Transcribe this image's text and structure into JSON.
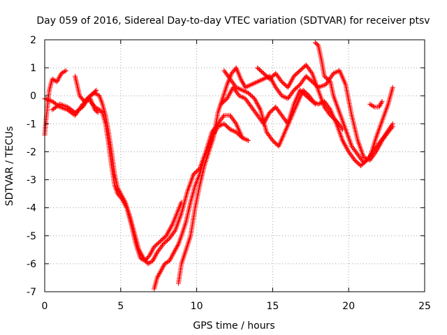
{
  "chart_data": {
    "type": "scatter",
    "title": "Day 059 of 2016, Sidereal Day-to-day VTEC variation (SDTVAR) for receiver ptsv",
    "xlabel": "GPS time / hours",
    "ylabel": "SDTVAR / TECUs",
    "xlim": [
      0,
      25
    ],
    "ylim": [
      -7,
      2
    ],
    "xticks": [
      "0",
      "5",
      "10",
      "15",
      "20",
      "25"
    ],
    "yticks": [
      "2",
      "1",
      "0",
      "-1",
      "-2",
      "-3",
      "-4",
      "-5",
      "-6",
      "-7"
    ],
    "grid": true,
    "marker": "+",
    "colors": {
      "series": "#ff0000",
      "axes": "#000000",
      "grid": "#a0a0a0"
    },
    "series": [
      {
        "name": "track-1",
        "points": [
          [
            0.0,
            -1.4
          ],
          [
            0.1,
            -0.8
          ],
          [
            0.3,
            0.2
          ],
          [
            0.5,
            0.6
          ],
          [
            0.8,
            0.5
          ],
          [
            1.1,
            0.8
          ],
          [
            1.4,
            0.9
          ]
        ]
      },
      {
        "name": "track-2",
        "points": [
          [
            0.0,
            -0.1
          ],
          [
            0.5,
            -0.2
          ],
          [
            1.0,
            -0.4
          ],
          [
            1.5,
            -0.5
          ],
          [
            2.0,
            -0.7
          ],
          [
            2.5,
            -0.3
          ],
          [
            3.0,
            -0.1
          ],
          [
            3.3,
            -0.5
          ],
          [
            3.5,
            -0.6
          ]
        ]
      },
      {
        "name": "track-3",
        "points": [
          [
            0.5,
            -0.5
          ],
          [
            1.0,
            -0.3
          ],
          [
            1.5,
            -0.4
          ],
          [
            2.0,
            -0.6
          ],
          [
            2.5,
            -0.4
          ],
          [
            3.0,
            0.0
          ],
          [
            3.4,
            0.2
          ]
        ]
      },
      {
        "name": "track-4",
        "points": [
          [
            2.0,
            0.7
          ],
          [
            2.3,
            0.0
          ],
          [
            2.6,
            -0.2
          ],
          [
            3.0,
            0.0
          ],
          [
            3.3,
            0.1
          ],
          [
            3.6,
            0.0
          ],
          [
            3.8,
            -0.3
          ],
          [
            4.0,
            -0.7
          ],
          [
            4.2,
            -1.3
          ],
          [
            4.4,
            -2.0
          ],
          [
            4.6,
            -2.8
          ],
          [
            4.8,
            -3.3
          ],
          [
            5.0,
            -3.5
          ],
          [
            5.3,
            -3.8
          ],
          [
            5.6,
            -4.3
          ],
          [
            5.9,
            -4.9
          ],
          [
            6.2,
            -5.5
          ],
          [
            6.5,
            -5.8
          ],
          [
            6.8,
            -6.0
          ],
          [
            7.1,
            -5.9
          ],
          [
            7.4,
            -5.6
          ],
          [
            7.8,
            -5.3
          ],
          [
            8.2,
            -5.1
          ],
          [
            8.6,
            -4.8
          ],
          [
            9.0,
            -4.2
          ],
          [
            9.4,
            -3.4
          ],
          [
            9.8,
            -2.8
          ],
          [
            10.2,
            -2.6
          ],
          [
            10.6,
            -2.0
          ],
          [
            11.0,
            -1.3
          ],
          [
            11.4,
            -1.0
          ],
          [
            11.8,
            -0.7
          ],
          [
            12.2,
            -0.7
          ],
          [
            12.6,
            -1.0
          ],
          [
            13.0,
            -1.5
          ]
        ]
      },
      {
        "name": "track-5",
        "points": [
          [
            3.0,
            -0.2
          ],
          [
            3.3,
            -0.4
          ],
          [
            3.6,
            -0.5
          ],
          [
            3.8,
            -0.6
          ],
          [
            4.0,
            -1.0
          ],
          [
            4.2,
            -1.7
          ],
          [
            4.4,
            -2.5
          ],
          [
            4.6,
            -3.2
          ],
          [
            4.8,
            -3.5
          ],
          [
            5.1,
            -3.7
          ],
          [
            5.4,
            -4.0
          ],
          [
            5.7,
            -4.6
          ],
          [
            6.0,
            -5.3
          ],
          [
            6.3,
            -5.8
          ],
          [
            6.6,
            -5.9
          ],
          [
            6.9,
            -5.7
          ],
          [
            7.2,
            -5.4
          ],
          [
            7.6,
            -5.2
          ],
          [
            8.0,
            -5.0
          ],
          [
            8.4,
            -4.6
          ],
          [
            8.7,
            -4.2
          ],
          [
            9.0,
            -3.8
          ]
        ]
      },
      {
        "name": "track-6",
        "points": [
          [
            7.2,
            -6.9
          ],
          [
            7.4,
            -6.5
          ],
          [
            7.6,
            -6.3
          ],
          [
            7.9,
            -6.0
          ],
          [
            8.2,
            -5.9
          ],
          [
            8.5,
            -5.6
          ],
          [
            8.8,
            -5.3
          ],
          [
            9.0,
            -5.0
          ],
          [
            9.3,
            -4.5
          ],
          [
            9.6,
            -3.8
          ],
          [
            9.9,
            -3.2
          ],
          [
            10.2,
            -2.8
          ],
          [
            10.5,
            -2.2
          ],
          [
            10.8,
            -1.8
          ],
          [
            11.1,
            -1.4
          ],
          [
            11.4,
            -1.1
          ],
          [
            11.8,
            -1.0
          ],
          [
            12.2,
            -1.2
          ],
          [
            12.6,
            -1.3
          ],
          [
            13.0,
            -1.5
          ],
          [
            13.4,
            -1.6
          ]
        ]
      },
      {
        "name": "track-7",
        "points": [
          [
            8.8,
            -6.7
          ],
          [
            9.0,
            -6.0
          ],
          [
            9.3,
            -5.5
          ],
          [
            9.6,
            -5.0
          ],
          [
            9.9,
            -4.0
          ],
          [
            10.2,
            -3.2
          ],
          [
            10.5,
            -2.5
          ],
          [
            10.8,
            -2.0
          ],
          [
            11.1,
            -1.5
          ],
          [
            11.4,
            -0.6
          ],
          [
            11.7,
            -0.1
          ],
          [
            12.0,
            0.4
          ],
          [
            12.3,
            0.8
          ],
          [
            12.6,
            1.0
          ],
          [
            12.9,
            0.6
          ],
          [
            13.2,
            0.3
          ],
          [
            13.6,
            0.4
          ],
          [
            14.0,
            0.5
          ],
          [
            14.4,
            0.6
          ],
          [
            14.8,
            0.7
          ],
          [
            15.2,
            0.3
          ],
          [
            15.6,
            0.0
          ],
          [
            16.0,
            -0.1
          ],
          [
            16.4,
            0.2
          ],
          [
            16.8,
            0.4
          ],
          [
            17.2,
            0.7
          ],
          [
            17.6,
            0.5
          ],
          [
            18.0,
            0.3
          ],
          [
            18.5,
            0.4
          ],
          [
            19.0,
            0.8
          ],
          [
            19.4,
            0.9
          ],
          [
            19.8,
            0.4
          ],
          [
            20.2,
            -0.7
          ],
          [
            20.6,
            -1.6
          ],
          [
            21.0,
            -2.2
          ],
          [
            21.4,
            -2.3
          ],
          [
            21.8,
            -2.0
          ],
          [
            22.2,
            -1.6
          ],
          [
            22.6,
            -1.3
          ],
          [
            22.9,
            -1.1
          ]
        ]
      },
      {
        "name": "track-8",
        "points": [
          [
            11.6,
            -0.3
          ],
          [
            12.0,
            -0.1
          ],
          [
            12.4,
            0.3
          ],
          [
            12.8,
            0.0
          ],
          [
            13.2,
            -0.1
          ],
          [
            13.6,
            -0.4
          ],
          [
            14.0,
            -0.7
          ],
          [
            14.4,
            -1.0
          ],
          [
            14.8,
            -0.6
          ],
          [
            15.2,
            -0.4
          ],
          [
            15.6,
            -0.7
          ],
          [
            16.0,
            -1.0
          ],
          [
            16.4,
            -0.3
          ],
          [
            16.8,
            0.2
          ],
          [
            17.2,
            0.0
          ],
          [
            17.6,
            -0.2
          ],
          [
            18.0,
            -0.3
          ],
          [
            18.4,
            -0.2
          ],
          [
            18.8,
            -0.5
          ],
          [
            19.2,
            -1.0
          ],
          [
            19.6,
            -1.6
          ],
          [
            20.0,
            -2.0
          ],
          [
            20.4,
            -2.3
          ],
          [
            20.8,
            -2.5
          ],
          [
            21.2,
            -2.3
          ],
          [
            21.6,
            -2.0
          ],
          [
            22.0,
            -1.7
          ],
          [
            22.4,
            -1.4
          ],
          [
            22.9,
            -1.0
          ]
        ]
      },
      {
        "name": "track-9",
        "points": [
          [
            11.8,
            0.9
          ],
          [
            12.2,
            0.6
          ],
          [
            12.6,
            0.3
          ],
          [
            13.0,
            0.2
          ],
          [
            13.4,
            0.1
          ],
          [
            13.8,
            -0.1
          ],
          [
            14.2,
            -0.5
          ],
          [
            14.6,
            -1.3
          ],
          [
            15.0,
            -1.6
          ],
          [
            15.4,
            -1.8
          ],
          [
            15.8,
            -1.3
          ],
          [
            16.2,
            -0.8
          ],
          [
            16.6,
            -0.3
          ],
          [
            17.0,
            0.2
          ],
          [
            17.4,
            0.0
          ],
          [
            17.8,
            -0.3
          ]
        ]
      },
      {
        "name": "track-10",
        "points": [
          [
            14.0,
            1.0
          ],
          [
            14.4,
            0.8
          ],
          [
            14.8,
            0.6
          ],
          [
            15.2,
            0.8
          ],
          [
            15.6,
            0.5
          ],
          [
            16.0,
            0.3
          ],
          [
            16.4,
            0.7
          ],
          [
            16.8,
            0.9
          ],
          [
            17.2,
            1.1
          ],
          [
            17.6,
            0.8
          ],
          [
            18.0,
            0.2
          ],
          [
            18.4,
            -0.4
          ],
          [
            18.8,
            -0.7
          ],
          [
            19.2,
            -0.9
          ],
          [
            19.6,
            -1.2
          ]
        ]
      },
      {
        "name": "track-11",
        "points": [
          [
            17.8,
            1.9
          ],
          [
            18.0,
            1.8
          ],
          [
            18.2,
            1.3
          ],
          [
            18.4,
            0.7
          ],
          [
            18.6,
            0.6
          ],
          [
            18.8,
            0.5
          ],
          [
            19.0,
            0.0
          ],
          [
            19.4,
            -0.6
          ],
          [
            19.8,
            -1.2
          ],
          [
            20.2,
            -1.8
          ],
          [
            20.6,
            -2.1
          ],
          [
            21.0,
            -2.4
          ],
          [
            21.4,
            -2.2
          ],
          [
            21.8,
            -1.5
          ],
          [
            22.2,
            -0.9
          ],
          [
            22.6,
            -0.3
          ],
          [
            22.9,
            0.3
          ]
        ]
      },
      {
        "name": "track-12",
        "points": [
          [
            21.4,
            -0.3
          ],
          [
            21.7,
            -0.4
          ],
          [
            22.0,
            -0.4
          ],
          [
            22.2,
            -0.2
          ]
        ]
      }
    ]
  }
}
